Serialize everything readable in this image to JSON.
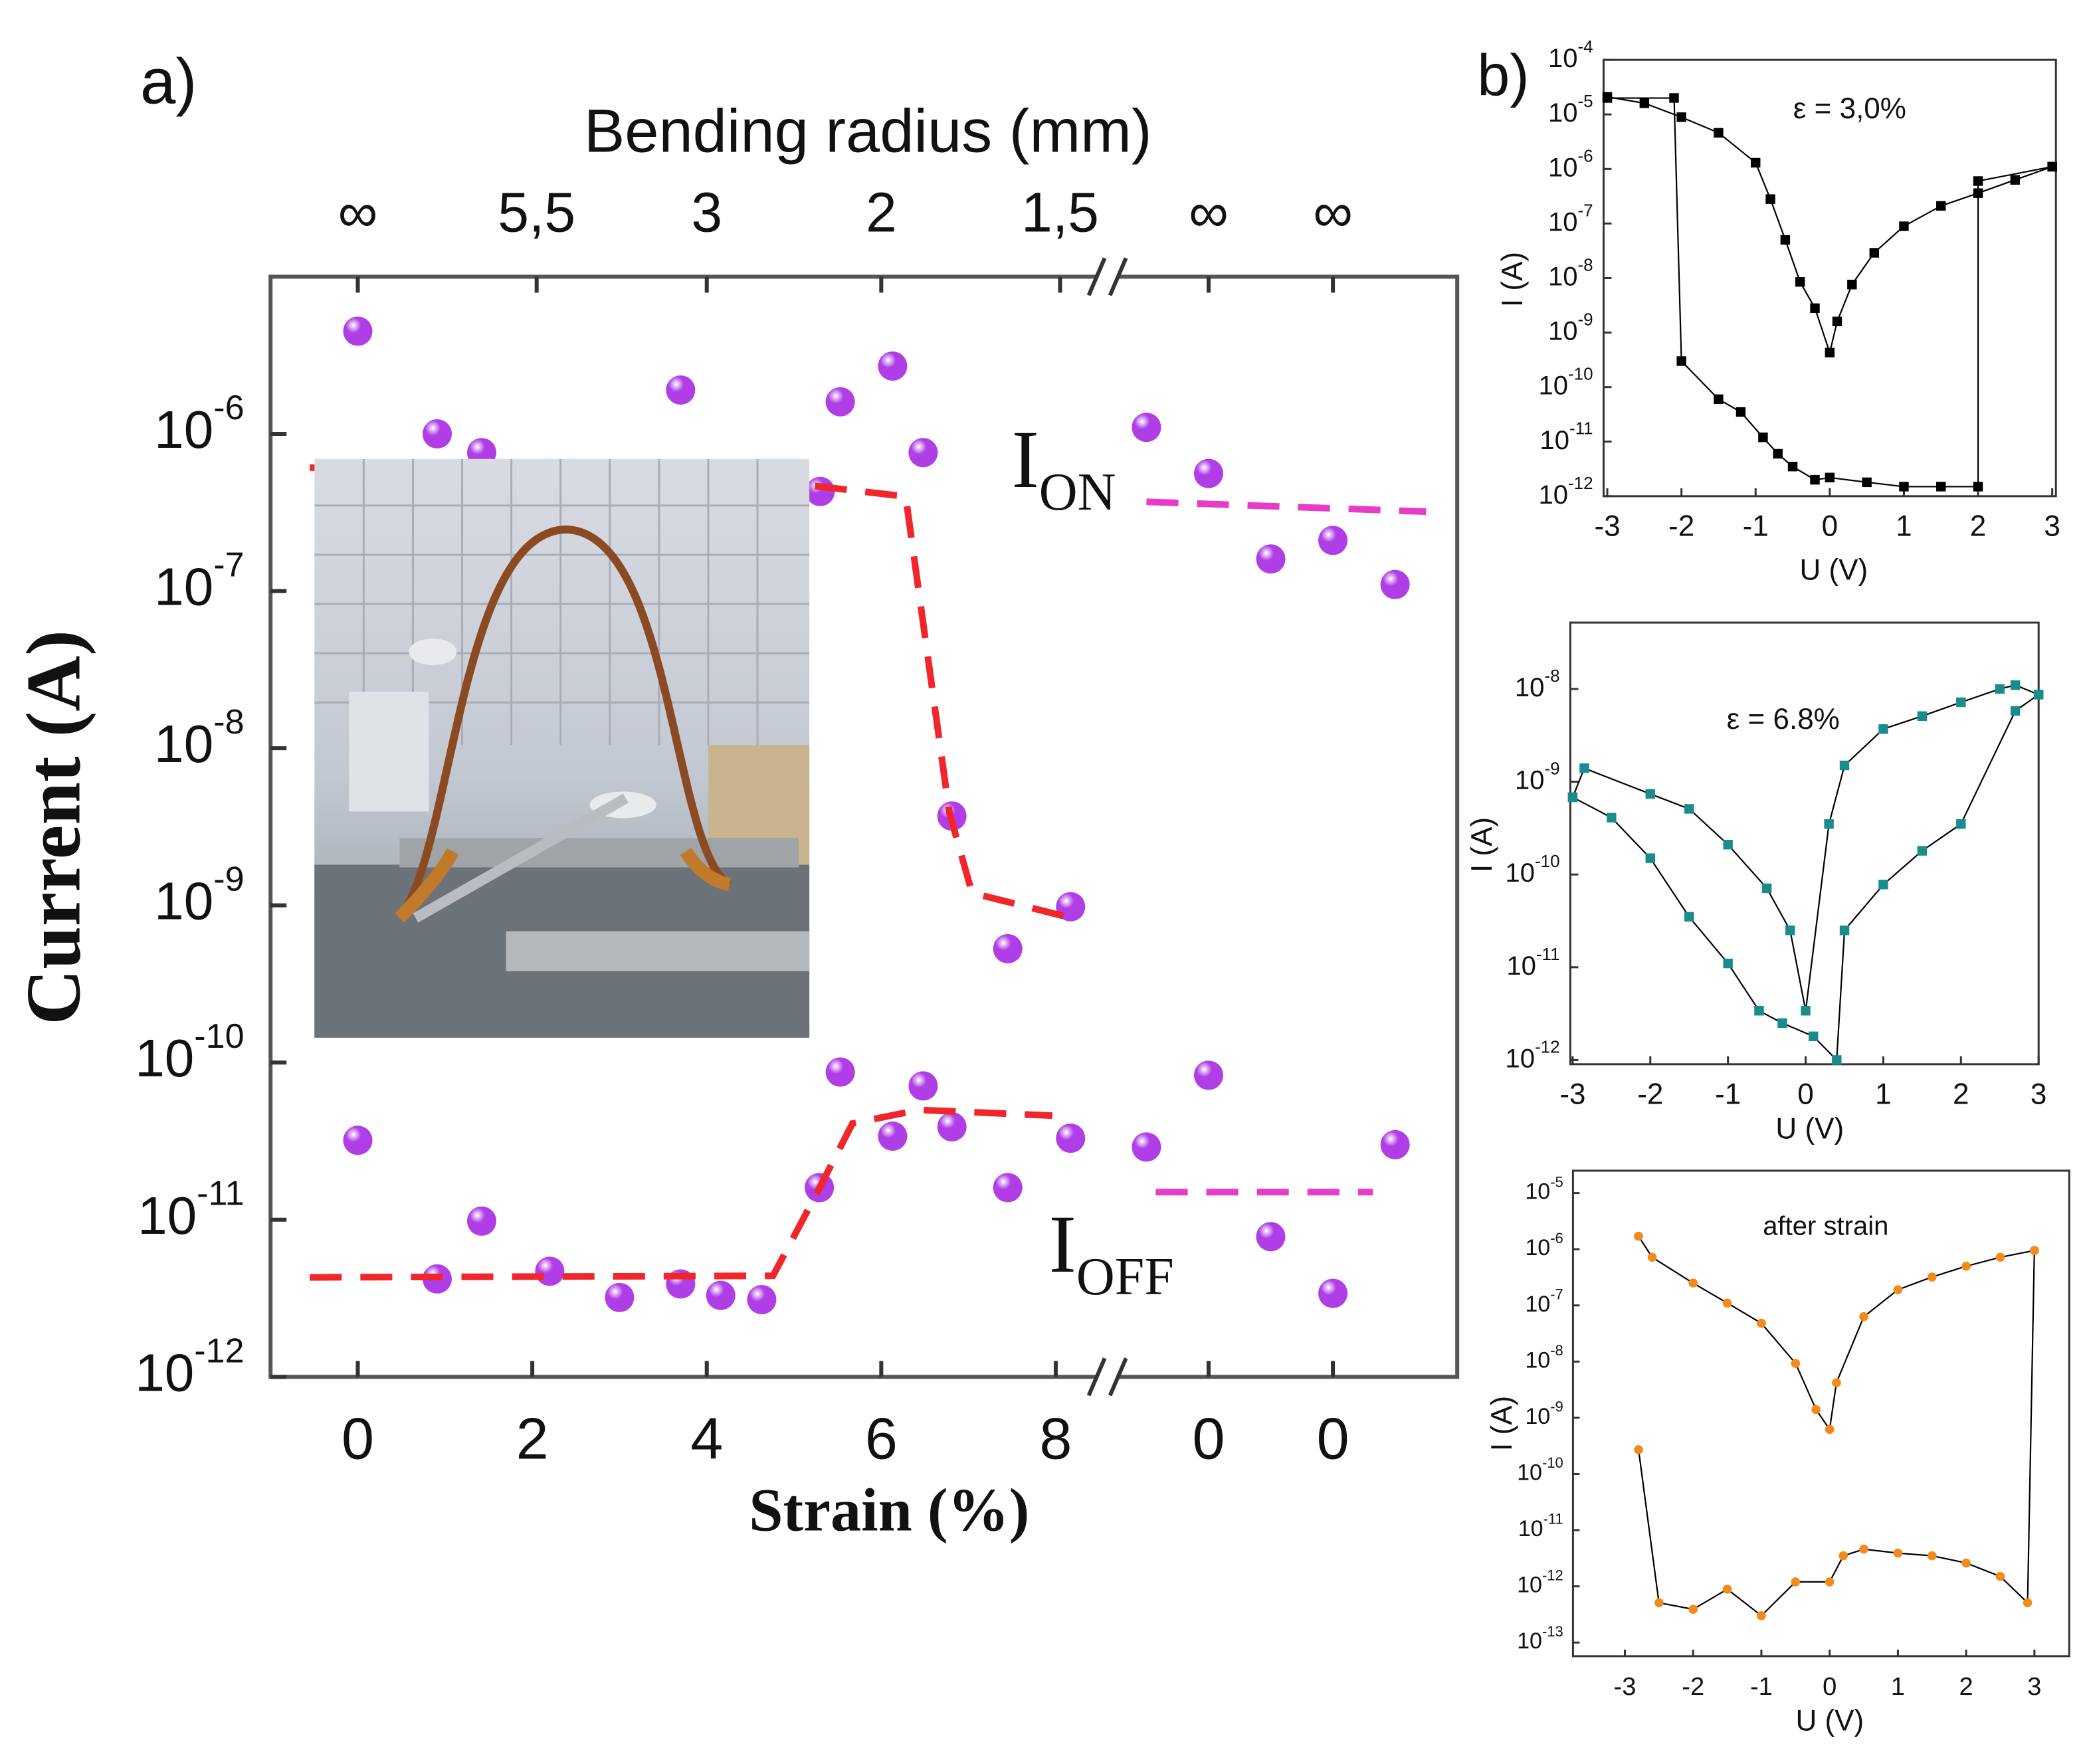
{
  "chart_data": [
    {
      "type": "scatter",
      "panel_label": "a)",
      "x_top_label": "Bending radius (mm)",
      "xlabel": "Strain (%)",
      "ylabel": "Current (A)",
      "yscale": "log",
      "xlim": [
        -1,
        8.5
      ],
      "x2lim": [
        0.5,
        6
      ],
      "ylim": [
        1e-12,
        1e-05
      ],
      "yticks": [
        {
          "value": 1e-12,
          "label": "10",
          "sup": "-12"
        },
        {
          "value": 1e-11,
          "label": "10",
          "sup": "-11"
        },
        {
          "value": 1e-10,
          "label": "10",
          "sup": "-10"
        },
        {
          "value": 1e-09,
          "label": "10",
          "sup": "-9"
        },
        {
          "value": 1e-08,
          "label": "10",
          "sup": "-8"
        },
        {
          "value": 1e-07,
          "label": "10",
          "sup": "-7"
        },
        {
          "value": 1e-06,
          "label": "10",
          "sup": "-6"
        }
      ],
      "xticks": [
        0,
        2,
        4,
        6,
        8
      ],
      "x2ticks": [
        {
          "value": 2,
          "label": "0"
        },
        {
          "value": 4,
          "label": "0"
        }
      ],
      "top_ticks": [
        {
          "value": 0,
          "label": "∞"
        },
        {
          "value": 2.05,
          "label": "5,5"
        },
        {
          "value": 4,
          "label": "3"
        },
        {
          "value": 6,
          "label": "2"
        },
        {
          "value": 8.05,
          "label": "1,5"
        }
      ],
      "top2_ticks": [
        {
          "value": 2,
          "label": "∞"
        },
        {
          "value": 4,
          "label": "∞"
        }
      ],
      "annotations": [
        {
          "text": "I",
          "sub": "ON"
        },
        {
          "text": "I",
          "sub": "OFF"
        }
      ],
      "series": [
        {
          "style": "markers",
          "xaxis": "x",
          "color": "#b03ee6",
          "x": [
            0,
            0.91,
            1.42,
            3.7,
            5.3,
            5.53,
            6.13,
            6.48,
            6.81,
            7.45,
            8.17
          ],
          "values": [
            4.5e-06,
            1e-06,
            7.6e-07,
            1.9e-06,
            4.3e-07,
            1.6e-06,
            2.7e-06,
            7.6e-07,
            3.7e-09,
            5.3e-10,
            9.8e-10
          ]
        },
        {
          "style": "markers",
          "xaxis": "x",
          "color": "#b03ee6",
          "x": [
            0,
            0.91,
            1.42,
            2.2,
            3.0,
            3.7,
            4.16,
            4.63,
            5.29,
            5.53,
            6.13,
            6.48,
            6.81,
            7.45,
            8.17
          ],
          "values": [
            3.2e-11,
            4.2e-12,
            9.8e-12,
            4.7e-12,
            3.2e-12,
            3.9e-12,
            3.3e-12,
            3.1e-12,
            1.6e-11,
            8.7e-11,
            3.4e-11,
            7.1e-11,
            3.9e-11,
            1.6e-11,
            3.3e-11
          ]
        },
        {
          "style": "markers",
          "xaxis": "x2",
          "color": "#b03ee6",
          "x": [
            1,
            2,
            3,
            4,
            5
          ],
          "values": [
            1.1e-06,
            5.6e-07,
            1.6e-07,
            2.1e-07,
            1.1e-07
          ]
        },
        {
          "style": "markers",
          "xaxis": "x2",
          "color": "#b03ee6",
          "x": [
            1,
            2,
            3,
            4,
            5
          ],
          "values": [
            2.9e-11,
            8.3e-11,
            7.8e-12,
            3.4e-12,
            3e-11
          ]
        },
        {
          "style": "dashed",
          "xaxis": "x",
          "color": "#f0262a",
          "x": [
            -0.55,
            5.18,
            6.28,
            6.78,
            7.04,
            8.11
          ],
          "values": [
            6.1e-07,
            4.7e-07,
            4e-07,
            3.9e-09,
            1.2e-09,
            8.5e-10
          ]
        },
        {
          "style": "dashed",
          "xaxis": "x",
          "color": "#f0262a",
          "x": [
            -0.55,
            4.76,
            5.24,
            5.67,
            6.43,
            7.96
          ],
          "values": [
            4.3e-12,
            4.4e-12,
            1.4e-11,
            4.1e-11,
            5e-11,
            4.6e-11
          ]
        },
        {
          "style": "dashed",
          "xaxis": "x2",
          "color": "#e63cc8",
          "x": [
            1,
            5.5
          ],
          "values": [
            3.7e-07,
            3.2e-07
          ]
        },
        {
          "style": "dashed",
          "xaxis": "x2",
          "color": "#e63cc8",
          "x": [
            1.15,
            4.64
          ],
          "values": [
            1.5e-11,
            1.5e-11
          ]
        }
      ]
    },
    {
      "type": "line",
      "panel_label": "b)",
      "annotation": "ε = 3,0%",
      "xlabel": "U (V)",
      "ylabel": "I (A)",
      "yscale": "log",
      "xlim": [
        -3.05,
        3.05
      ],
      "ylim": [
        1e-12,
        0.0001
      ],
      "line_color": "#000000",
      "marker": "square",
      "xticks": [
        -3,
        -2,
        -1,
        0,
        1,
        2,
        3
      ],
      "yticks": [
        {
          "value": 1e-12,
          "label": "10",
          "sup": "-12"
        },
        {
          "value": 1e-11,
          "label": "10",
          "sup": "-11"
        },
        {
          "value": 1e-10,
          "label": "10",
          "sup": "-10"
        },
        {
          "value": 1e-09,
          "label": "10",
          "sup": "-9"
        },
        {
          "value": 1e-08,
          "label": "10",
          "sup": "-8"
        },
        {
          "value": 1e-07,
          "label": "10",
          "sup": "-7"
        },
        {
          "value": 1e-06,
          "label": "10",
          "sup": "-6"
        },
        {
          "value": 1e-05,
          "label": "10",
          "sup": "-5"
        },
        {
          "value": 0.0001,
          "label": "10",
          "sup": "-4"
        }
      ],
      "series": [
        {
          "color": "#000000",
          "x": [
            -3,
            -2.5,
            -2,
            -1.5,
            -1,
            -0.8,
            -0.6,
            -0.4,
            -0.2,
            0,
            0.1,
            0.3,
            0.6,
            1,
            1.5,
            2,
            2.5,
            3
          ],
          "values": [
            2.1e-05,
            1.6e-05,
            8.9e-06,
            4.6e-06,
            1.3e-06,
            2.8e-07,
            5e-08,
            8.5e-09,
            2.8e-09,
            4.3e-10,
            1.6e-09,
            7.6e-09,
            2.9e-08,
            8.9e-08,
            2.1e-07,
            3.6e-07,
            6.3e-07,
            1.1e-06
          ]
        },
        {
          "color": "#000000",
          "x": [
            3,
            2,
            2,
            1.5,
            1,
            0.5,
            0,
            -0.2,
            -0.5,
            -0.7,
            -0.9,
            -1.2,
            -1.5,
            -2,
            -2.1,
            -3
          ],
          "values": [
            1.1e-06,
            6e-07,
            1.5e-12,
            1.5e-12,
            1.5e-12,
            1.8e-12,
            2.2e-12,
            2e-12,
            3.5e-12,
            6e-12,
            1.2e-11,
            3.5e-11,
            6e-11,
            3e-10,
            2e-05,
            2e-05
          ]
        }
      ]
    },
    {
      "type": "line",
      "annotation": "ε = 6.8%",
      "xlabel": "U (V)",
      "ylabel": "I (A)",
      "yscale": "log",
      "xlim": [
        -3.03,
        3.0
      ],
      "ylim": [
        9e-13,
        5.2e-08
      ],
      "line_color": "#000000",
      "marker": "square",
      "xticks": [
        -3,
        -2,
        -1,
        0,
        1,
        2,
        3
      ],
      "yticks": [
        {
          "value": 1e-12,
          "label": "10",
          "sup": "-12"
        },
        {
          "value": 1e-11,
          "label": "10",
          "sup": "-11"
        },
        {
          "value": 1e-10,
          "label": "10",
          "sup": "-10"
        },
        {
          "value": 1e-09,
          "label": "10",
          "sup": "-9"
        },
        {
          "value": 1e-08,
          "label": "10",
          "sup": "-8"
        }
      ],
      "series": [
        {
          "color": "#1b8c8c",
          "x": [
            -3,
            -2.85,
            -2,
            -1.5,
            -1,
            -0.5,
            -0.2,
            0,
            0.3,
            0.5,
            1,
            1.5,
            2,
            2.5,
            2.7,
            3
          ],
          "values": [
            6.8e-10,
            1.4e-09,
            7.4e-10,
            5.1e-10,
            2.1e-10,
            7.1e-11,
            2.5e-11,
            3.4e-12,
            3.5e-10,
            1.5e-09,
            3.7e-09,
            5.1e-09,
            7.2e-09,
            1e-08,
            1.1e-08,
            8.7e-09
          ]
        },
        {
          "color": "#1b8c8c",
          "x": [
            3,
            2.7,
            2,
            1.5,
            1,
            0.5,
            0.4,
            0.1,
            -0.3,
            -0.6,
            -1,
            -1.5,
            -2,
            -2.5,
            -3
          ],
          "values": [
            8.7e-09,
            5.8e-09,
            3.5e-10,
            1.8e-10,
            7.8e-11,
            2.5e-11,
            1e-12,
            1.8e-12,
            2.5e-12,
            3.4e-12,
            1.1e-11,
            3.5e-11,
            1.5e-10,
            4.1e-10,
            6.8e-10
          ]
        }
      ]
    },
    {
      "type": "line",
      "annotation": "after strain",
      "xlabel": "U (V)",
      "ylabel": "I (A)",
      "yscale": "log",
      "xlim": [
        -3.76,
        3.51
      ],
      "ylim": [
        5.7e-14,
        2.5e-05
      ],
      "line_color": "#000000",
      "marker": "circle",
      "xticks": [
        -3,
        -2,
        -1,
        0,
        1,
        2,
        3
      ],
      "yticks": [
        {
          "value": 1e-13,
          "label": "10",
          "sup": "-13"
        },
        {
          "value": 1e-12,
          "label": "10",
          "sup": "-12"
        },
        {
          "value": 1e-11,
          "label": "10",
          "sup": "-11"
        },
        {
          "value": 1e-10,
          "label": "10",
          "sup": "-10"
        },
        {
          "value": 1e-09,
          "label": "10",
          "sup": "-9"
        },
        {
          "value": 1e-08,
          "label": "10",
          "sup": "-8"
        },
        {
          "value": 1e-07,
          "label": "10",
          "sup": "-7"
        },
        {
          "value": 1e-06,
          "label": "10",
          "sup": "-6"
        },
        {
          "value": 1e-05,
          "label": "10",
          "sup": "-5"
        }
      ],
      "series": [
        {
          "color": "#f28a1c",
          "x": [
            -2.8,
            -2.6,
            -2,
            -1.5,
            -1,
            -0.5,
            -0.2,
            0,
            0.1,
            0.5,
            1,
            1.5,
            2,
            2.5,
            3
          ],
          "values": [
            1.7e-06,
            7.2e-07,
            2.5e-07,
            1.1e-07,
            4.8e-08,
            9.3e-09,
            1.4e-09,
            6.2e-10,
            4.2e-09,
            6.3e-08,
            1.9e-07,
            3.2e-07,
            5e-07,
            7.2e-07,
            9.5e-07
          ]
        },
        {
          "color": "#f28a1c",
          "x": [
            3,
            2.9,
            2.5,
            2,
            1.5,
            1,
            0.5,
            0.2,
            0,
            -0.5,
            -1,
            -1.5,
            -2,
            -2.5,
            -2.8
          ],
          "values": [
            9.5e-07,
            5.1e-13,
            1.5e-12,
            2.6e-12,
            3.5e-12,
            3.9e-12,
            4.6e-12,
            3.5e-12,
            1.2e-12,
            1.2e-12,
            3e-13,
            8.9e-13,
            3.9e-13,
            5.1e-13,
            2.7e-10
          ]
        }
      ]
    }
  ]
}
